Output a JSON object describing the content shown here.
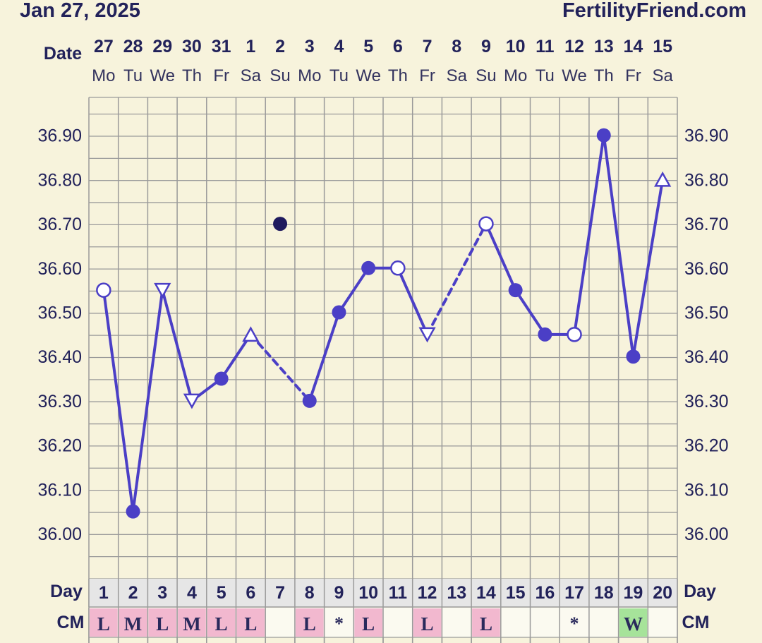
{
  "header": {
    "date": "Jan 27, 2025",
    "brand": "FertilityFriend.com"
  },
  "labels": {
    "date": "Date",
    "day": "Day",
    "cm": "CM"
  },
  "colors": {
    "line": "#4b3fc6",
    "dark_point": "#1f1a5e",
    "cm_pink": "#f2b8cf",
    "cm_green": "#a6e39a",
    "background": "#f7f3dc",
    "grid": "#9a9a9a"
  },
  "chart_data": {
    "type": "line",
    "y_ticks": [
      "36.90",
      "36.80",
      "36.70",
      "36.60",
      "36.50",
      "36.40",
      "36.30",
      "36.20",
      "36.10",
      "36.00"
    ],
    "ylim": [
      35.85,
      37.0
    ],
    "grid": true,
    "dates": [
      "27",
      "28",
      "29",
      "30",
      "31",
      "1",
      "2",
      "3",
      "4",
      "5",
      "6",
      "7",
      "8",
      "9",
      "10",
      "11",
      "12",
      "13",
      "14",
      "15"
    ],
    "weekdays": [
      "Mo",
      "Tu",
      "We",
      "Th",
      "Fr",
      "Sa",
      "Su",
      "Mo",
      "Tu",
      "We",
      "Th",
      "Fr",
      "Sa",
      "Su",
      "Mo",
      "Tu",
      "We",
      "Th",
      "Fr",
      "Sa"
    ],
    "days": [
      "1",
      "2",
      "3",
      "4",
      "5",
      "6",
      "7",
      "8",
      "9",
      "10",
      "11",
      "12",
      "13",
      "14",
      "15",
      "16",
      "17",
      "18",
      "19",
      "20"
    ],
    "cm": [
      "L",
      "M",
      "L",
      "M",
      "L",
      "L",
      "",
      "L",
      "*",
      "L",
      "",
      "L",
      "",
      "L",
      "",
      "",
      "*",
      "",
      "W",
      ""
    ],
    "cm_colors": [
      "pink",
      "pink",
      "pink",
      "pink",
      "pink",
      "pink",
      "",
      "pink",
      "",
      "pink",
      "",
      "pink",
      "",
      "pink",
      "",
      "",
      "",
      "",
      "green",
      ""
    ],
    "temps": [
      36.55,
      36.05,
      36.55,
      36.3,
      36.35,
      36.45,
      36.7,
      36.3,
      36.5,
      36.6,
      36.6,
      36.45,
      null,
      36.7,
      36.55,
      36.45,
      36.45,
      36.9,
      36.4,
      36.8
    ],
    "markers": [
      "circle-open",
      "circle-filled",
      "tri-down-open",
      "tri-down-open",
      "circle-filled",
      "tri-up-open",
      "circle-dark",
      "circle-filled",
      "circle-filled",
      "circle-filled",
      "circle-open",
      "tri-down-open",
      "",
      "circle-open",
      "circle-filled",
      "circle-filled",
      "circle-open",
      "circle-filled",
      "circle-filled",
      "tri-up-open"
    ],
    "connected": [
      true,
      true,
      true,
      true,
      true,
      true,
      false,
      true,
      true,
      true,
      true,
      true,
      false,
      true,
      true,
      true,
      true,
      true,
      true,
      true
    ]
  }
}
